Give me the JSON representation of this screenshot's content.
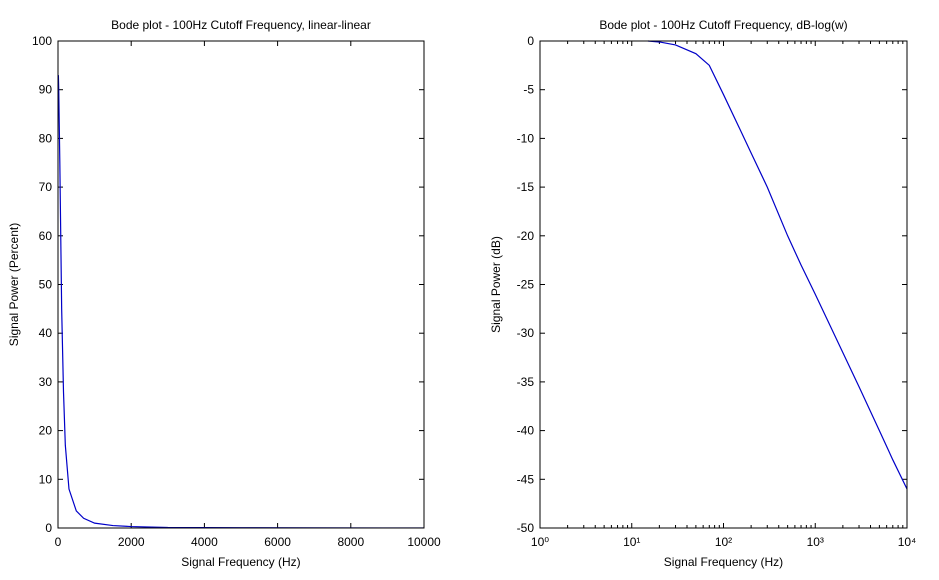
{
  "chart_data": [
    {
      "type": "line",
      "title": "Bode plot - 100Hz Cutoff Frequency, linear-linear",
      "xlabel": "Signal Frequency (Hz)",
      "ylabel": "Signal Power (Percent)",
      "x": [
        10,
        20,
        50,
        100,
        150,
        200,
        300,
        500,
        700,
        1000,
        1500,
        2000,
        3000,
        5000,
        7000,
        10000
      ],
      "values": [
        93,
        90,
        75,
        45,
        28,
        17,
        8,
        3.5,
        2,
        1,
        0.5,
        0.3,
        0.1,
        0.05,
        0.02,
        0.01
      ],
      "color": "#0000c8",
      "xscale": "linear",
      "xlim": [
        0,
        10000
      ],
      "xticks": [
        0,
        2000,
        4000,
        6000,
        8000,
        10000
      ],
      "ylim": [
        0,
        100
      ],
      "yticks": [
        0,
        10,
        20,
        30,
        40,
        50,
        60,
        70,
        80,
        90,
        100
      ],
      "box": true,
      "minor_ticks": false
    },
    {
      "type": "line",
      "title": "Bode plot - 100Hz Cutoff Frequency, dB-log(w)",
      "xlabel": "Signal Frequency (Hz)",
      "ylabel": "Signal Power (dB)",
      "x": [
        15,
        20,
        30,
        50,
        70,
        100,
        150,
        200,
        300,
        500,
        700,
        1000,
        2000,
        3000,
        5000,
        7000,
        10000
      ],
      "values": [
        0,
        -0.1,
        -0.4,
        -1.3,
        -2.5,
        -5.5,
        -9,
        -11.5,
        -15,
        -20,
        -23,
        -26,
        -32,
        -35.5,
        -40,
        -43,
        -46
      ],
      "color": "#0000c8",
      "xscale": "log",
      "xlim": [
        1,
        10000
      ],
      "xticks": [
        {
          "value": 1,
          "label": "10⁰"
        },
        {
          "value": 10,
          "label": "10¹"
        },
        {
          "value": 100,
          "label": "10²"
        },
        {
          "value": 1000,
          "label": "10³"
        },
        {
          "value": 10000,
          "label": "10⁴"
        }
      ],
      "ylim": [
        -50,
        0
      ],
      "yticks": [
        -50,
        -45,
        -40,
        -35,
        -30,
        -25,
        -20,
        -15,
        -10,
        -5,
        0
      ],
      "box": true,
      "minor_ticks": true
    }
  ]
}
